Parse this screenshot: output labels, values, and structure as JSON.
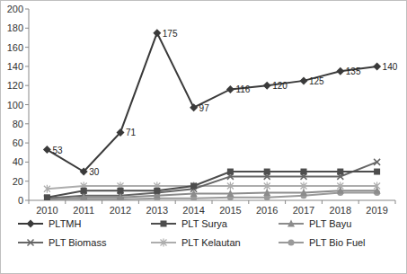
{
  "chart_data": {
    "type": "line",
    "categories": [
      "2010",
      "2011",
      "2012",
      "2013",
      "2014",
      "2015",
      "2016",
      "2017",
      "2018",
      "2019"
    ],
    "series": [
      {
        "name": "PLTMH",
        "color": "#3a3a3a",
        "marker": "diamond",
        "data_labels": true,
        "values": [
          53,
          30,
          71,
          175,
          97,
          116,
          120,
          125,
          135,
          140
        ]
      },
      {
        "name": "PLT Surya",
        "color": "#4d4d4d",
        "marker": "square",
        "values": [
          3,
          10,
          10,
          10,
          15,
          30,
          30,
          30,
          30,
          30
        ]
      },
      {
        "name": "PLT Bayu",
        "color": "#8c8c8c",
        "marker": "triangle",
        "values": [
          1,
          3,
          3,
          5,
          7,
          7,
          8,
          8,
          10,
          10
        ]
      },
      {
        "name": "PLT Biomass",
        "color": "#666666",
        "marker": "x",
        "values": [
          2,
          5,
          5,
          8,
          12,
          25,
          25,
          25,
          25,
          40
        ]
      },
      {
        "name": "PLT Kelautan",
        "color": "#adadad",
        "marker": "star",
        "values": [
          12,
          15,
          15,
          15,
          15,
          15,
          15,
          15,
          15,
          15
        ]
      },
      {
        "name": "PLT Bio Fuel",
        "color": "#9a9a9a",
        "marker": "circle",
        "values": [
          0,
          1,
          1,
          2,
          2,
          3,
          3,
          5,
          8,
          8
        ]
      }
    ],
    "ylim": [
      0,
      200
    ],
    "yticks": [
      0,
      20,
      40,
      60,
      80,
      100,
      120,
      140,
      160,
      180,
      200
    ],
    "grid": false,
    "legend": "bottom"
  }
}
